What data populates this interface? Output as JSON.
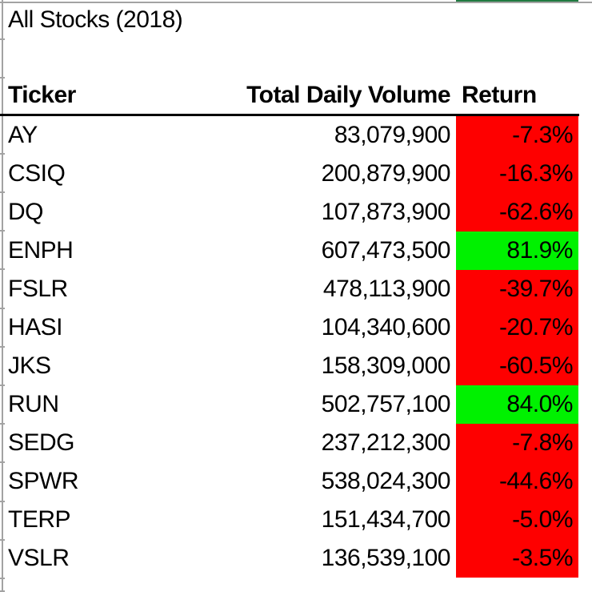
{
  "sheet": {
    "title": "All Stocks (2018)",
    "header": {
      "ticker": "Ticker",
      "volume": "Total Daily Volume",
      "return": "Return"
    },
    "rows": [
      {
        "ticker": "AY",
        "volume": "83,079,900",
        "ret": "-7.3%"
      },
      {
        "ticker": "CSIQ",
        "volume": "200,879,900",
        "ret": "-16.3%"
      },
      {
        "ticker": "DQ",
        "volume": "107,873,900",
        "ret": "-62.6%"
      },
      {
        "ticker": "ENPH",
        "volume": "607,473,500",
        "ret": "81.9%"
      },
      {
        "ticker": "FSLR",
        "volume": "478,113,900",
        "ret": "-39.7%"
      },
      {
        "ticker": "HASI",
        "volume": "104,340,600",
        "ret": "-20.7%"
      },
      {
        "ticker": "JKS",
        "volume": "158,309,000",
        "ret": "-60.5%"
      },
      {
        "ticker": "RUN",
        "volume": "502,757,100",
        "ret": "84.0%"
      },
      {
        "ticker": "SEDG",
        "volume": "237,212,300",
        "ret": "-7.8%"
      },
      {
        "ticker": "SPWR",
        "volume": "538,024,300",
        "ret": "-44.6%"
      },
      {
        "ticker": "TERP",
        "volume": "151,434,700",
        "ret": "-5.0%"
      },
      {
        "ticker": "VSLR",
        "volume": "136,539,100",
        "ret": "-3.5%"
      }
    ],
    "colors": {
      "negative_bg": "#FE0000",
      "positive_bg": "#00F100",
      "gridline": "#A3A3A3",
      "header_border": "#000000",
      "partial_cell_green": "#1F7A40"
    }
  }
}
